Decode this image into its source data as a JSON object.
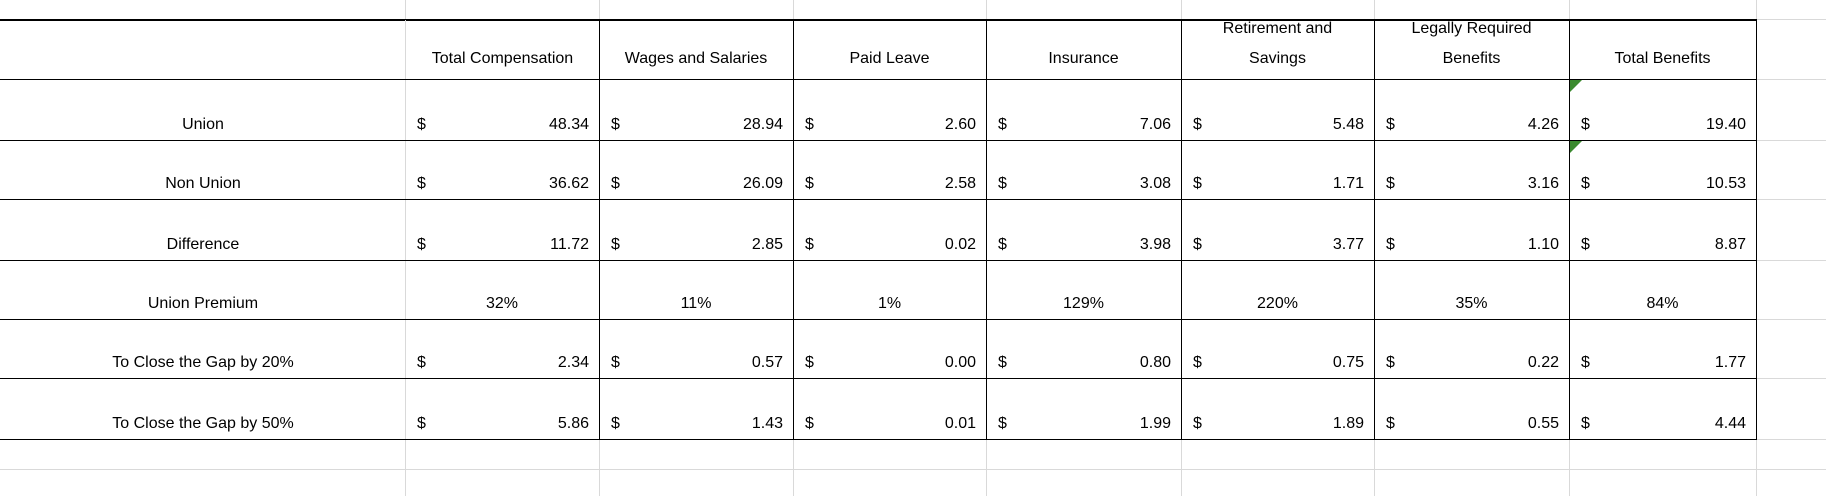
{
  "table": {
    "columns": [
      "Total Compensation",
      "Wages and Salaries",
      "Paid Leave",
      "Insurance",
      "Retirement and Savings",
      "Legally Required Benefits",
      "Total Benefits"
    ],
    "rows": [
      {
        "label": "Union",
        "cells": [
          [
            "$",
            "48.34"
          ],
          [
            "$",
            "28.94"
          ],
          [
            "$",
            "2.60"
          ],
          [
            "$",
            "7.06"
          ],
          [
            "$",
            "5.48"
          ],
          [
            "$",
            "4.26"
          ],
          [
            "$",
            "19.40"
          ]
        ]
      },
      {
        "label": "Non Union",
        "cells": [
          [
            "$",
            "36.62"
          ],
          [
            "$",
            "26.09"
          ],
          [
            "$",
            "2.58"
          ],
          [
            "$",
            "3.08"
          ],
          [
            "$",
            "1.71"
          ],
          [
            "$",
            "3.16"
          ],
          [
            "$",
            "10.53"
          ]
        ]
      },
      {
        "label": "Difference",
        "cells": [
          [
            "$",
            "11.72"
          ],
          [
            "$",
            "2.85"
          ],
          [
            "$",
            "0.02"
          ],
          [
            "$",
            "3.98"
          ],
          [
            "$",
            "3.77"
          ],
          [
            "$",
            "1.10"
          ],
          [
            "$",
            "8.87"
          ]
        ]
      },
      {
        "label": "Union Premium",
        "cells": [
          "32%",
          "11%",
          "1%",
          "129%",
          "220%",
          "35%",
          "84%"
        ]
      },
      {
        "label": "To Close the Gap by 20%",
        "cells": [
          [
            "$",
            "2.34"
          ],
          [
            "$",
            "0.57"
          ],
          [
            "$",
            "0.00"
          ],
          [
            "$",
            "0.80"
          ],
          [
            "$",
            "0.75"
          ],
          [
            "$",
            "0.22"
          ],
          [
            "$",
            "1.77"
          ]
        ]
      },
      {
        "label": "To Close the Gap by 50%",
        "cells": [
          [
            "$",
            "5.86"
          ],
          [
            "$",
            "1.43"
          ],
          [
            "$",
            "0.01"
          ],
          [
            "$",
            "1.99"
          ],
          [
            "$",
            "1.89"
          ],
          [
            "$",
            "0.55"
          ],
          [
            "$",
            "4.44"
          ]
        ]
      }
    ]
  }
}
